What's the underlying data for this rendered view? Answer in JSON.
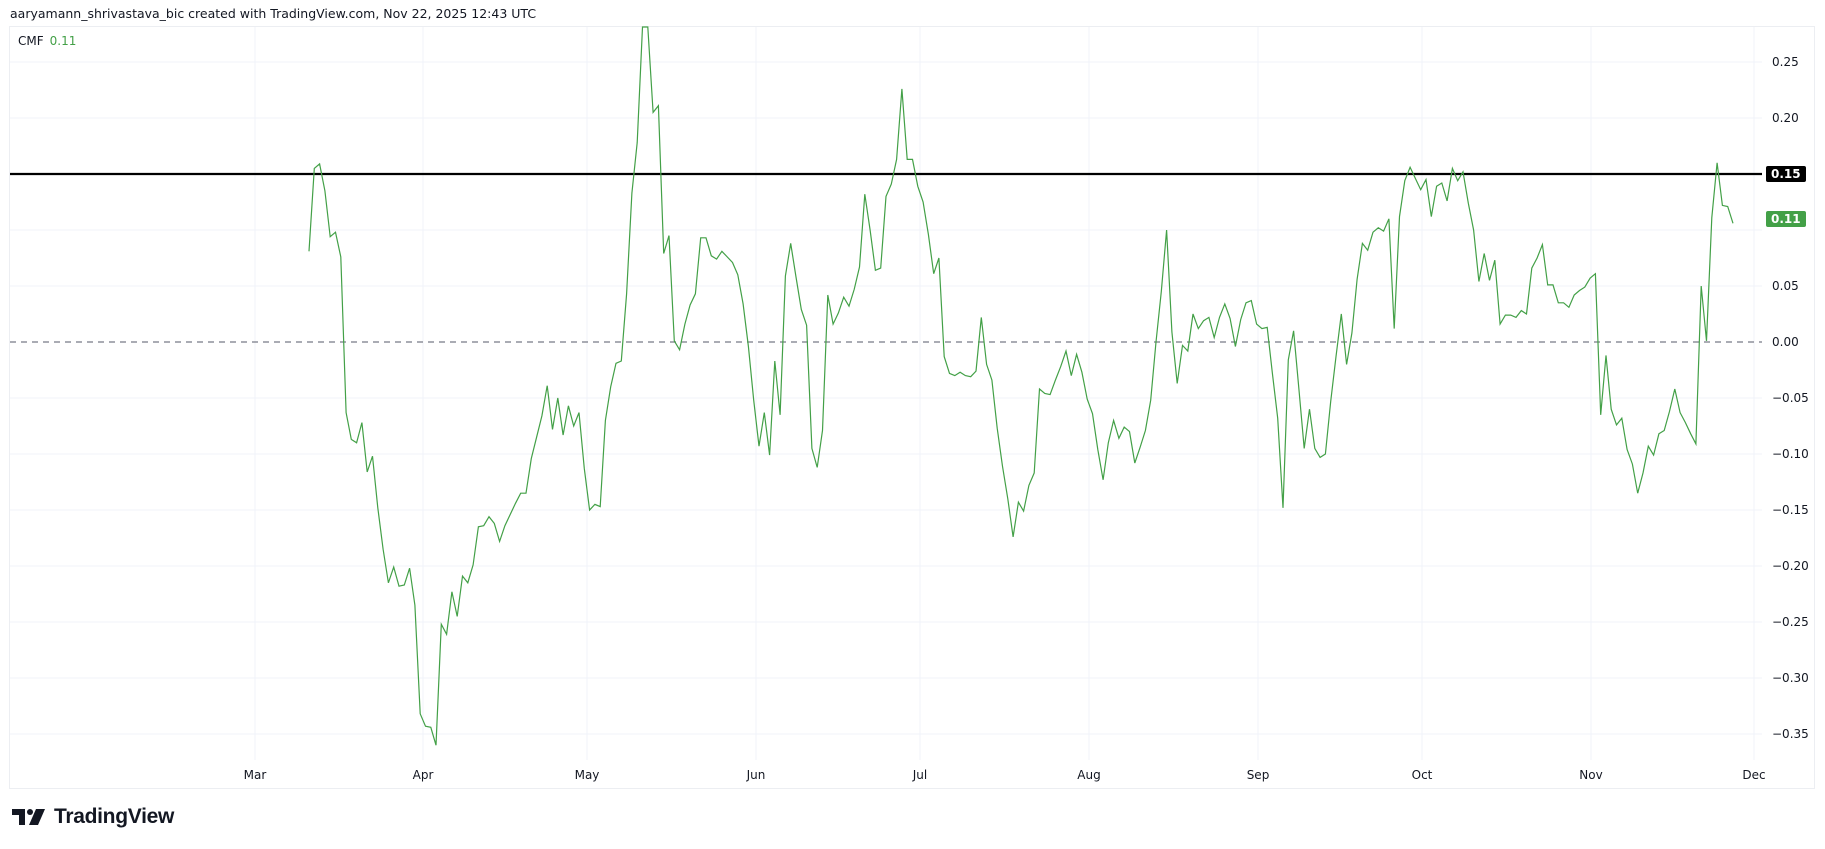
{
  "header": {
    "attribution": "aaryamann_shrivastava_bic created with TradingView.com, Nov 22, 2025 12:43 UTC"
  },
  "legend": {
    "name": "CMF",
    "value": "0.11"
  },
  "colors": {
    "line": "#43a047",
    "level": "#000000",
    "zero": "#787b86",
    "grid": "#f0f3fa",
    "badge_current": "#43a047",
    "badge_level": "#000000"
  },
  "price_axis": {
    "ticks": [
      "0.25",
      "0.20",
      "0.15",
      "0.10",
      "0.05",
      "0.00",
      "-0.05",
      "-0.10",
      "-0.15",
      "-0.20",
      "-0.25",
      "-0.30",
      "-0.35"
    ]
  },
  "time_axis": {
    "ticks": [
      "Mar",
      "Apr",
      "May",
      "Jun",
      "Jul",
      "Aug",
      "Sep",
      "Oct",
      "Nov",
      "Dec"
    ]
  },
  "badges": {
    "level": "0.15",
    "current": "0.11"
  },
  "logo": {
    "text": "TradingView"
  },
  "chart_data": {
    "type": "line",
    "title": "CMF",
    "xlabel": "",
    "ylabel": "",
    "ylim": [
      -0.38,
      0.285
    ],
    "grid": true,
    "legend_position": "top-left",
    "annotations": [
      {
        "type": "hline",
        "value": 0.15,
        "color": "#000000",
        "label": "0.15"
      },
      {
        "type": "hline",
        "value": 0.0,
        "style": "dashed",
        "color": "#787b86"
      },
      {
        "type": "last_value",
        "value": 0.11,
        "color": "#43a047"
      }
    ],
    "x_start": "Mar 11",
    "x_end": "Nov 21",
    "x_step": "1 day (trading days approx.)",
    "series": [
      {
        "name": "CMF",
        "values": [
          0.081,
          0.155,
          0.159,
          0.135,
          0.094,
          0.098,
          0.076,
          -0.063,
          -0.087,
          -0.09,
          -0.072,
          -0.116,
          -0.102,
          -0.148,
          -0.185,
          -0.215,
          -0.201,
          -0.218,
          -0.217,
          -0.202,
          -0.235,
          -0.332,
          -0.343,
          -0.344,
          -0.36,
          -0.252,
          -0.261,
          -0.223,
          -0.245,
          -0.209,
          -0.215,
          -0.199,
          -0.165,
          -0.164,
          -0.156,
          -0.162,
          -0.178,
          -0.164,
          -0.154,
          -0.144,
          -0.135,
          -0.135,
          -0.104,
          -0.085,
          -0.066,
          -0.039,
          -0.078,
          -0.05,
          -0.083,
          -0.057,
          -0.075,
          -0.063,
          -0.113,
          -0.15,
          -0.145,
          -0.147,
          -0.07,
          -0.04,
          -0.019,
          -0.017,
          0.043,
          0.133,
          0.178,
          0.29,
          0.29,
          0.205,
          0.211,
          0.079,
          0.095,
          0.001,
          -0.007,
          0.016,
          0.033,
          0.043,
          0.093,
          0.093,
          0.077,
          0.074,
          0.081,
          0.076,
          0.071,
          0.06,
          0.034,
          -0.004,
          -0.052,
          -0.093,
          -0.063,
          -0.101,
          -0.017,
          -0.065,
          0.059,
          0.088,
          0.058,
          0.029,
          0.015,
          -0.095,
          -0.112,
          -0.079,
          0.042,
          0.016,
          0.026,
          0.04,
          0.032,
          0.047,
          0.067,
          0.132,
          0.1,
          0.064,
          0.066,
          0.13,
          0.141,
          0.163,
          0.226,
          0.163,
          0.163,
          0.139,
          0.125,
          0.096,
          0.061,
          0.075,
          -0.013,
          -0.028,
          -0.03,
          -0.027,
          -0.03,
          -0.031,
          -0.026,
          0.022,
          -0.02,
          -0.034,
          -0.077,
          -0.111,
          -0.14,
          -0.174,
          -0.143,
          -0.151,
          -0.128,
          -0.117,
          -0.042,
          -0.046,
          -0.047,
          -0.034,
          -0.022,
          -0.008,
          -0.03,
          -0.011,
          -0.027,
          -0.051,
          -0.064,
          -0.096,
          -0.123,
          -0.09,
          -0.07,
          -0.086,
          -0.076,
          -0.08,
          -0.108,
          -0.094,
          -0.079,
          -0.052,
          0.0,
          0.045,
          0.1,
          0.009,
          -0.037,
          -0.003,
          -0.008,
          0.025,
          0.012,
          0.019,
          0.022,
          0.004,
          0.022,
          0.034,
          0.021,
          -0.004,
          0.02,
          0.035,
          0.037,
          0.016,
          0.012,
          0.013,
          -0.028,
          -0.068,
          -0.148,
          -0.016,
          0.01,
          -0.042,
          -0.095,
          -0.06,
          -0.095,
          -0.103,
          -0.1,
          -0.053,
          -0.013,
          0.025,
          -0.02,
          0.008,
          0.056,
          0.088,
          0.082,
          0.098,
          0.102,
          0.099,
          0.11,
          0.012,
          0.112,
          0.144,
          0.156,
          0.146,
          0.136,
          0.145,
          0.112,
          0.139,
          0.142,
          0.126,
          0.155,
          0.144,
          0.152,
          0.124,
          0.1,
          0.054,
          0.079,
          0.055,
          0.073,
          0.016,
          0.024,
          0.024,
          0.022,
          0.028,
          0.025,
          0.066,
          0.075,
          0.087,
          0.051,
          0.051,
          0.035,
          0.035,
          0.031,
          0.042,
          0.046,
          0.049,
          0.057,
          0.061,
          -0.065,
          -0.012,
          -0.06,
          -0.074,
          -0.068,
          -0.096,
          -0.109,
          -0.135,
          -0.117,
          -0.093,
          -0.101,
          -0.082,
          -0.079,
          -0.062,
          -0.042,
          -0.063,
          -0.072,
          -0.082,
          -0.091,
          0.05,
          0.001,
          0.111,
          0.16,
          0.122,
          0.121,
          0.106
        ]
      }
    ]
  }
}
